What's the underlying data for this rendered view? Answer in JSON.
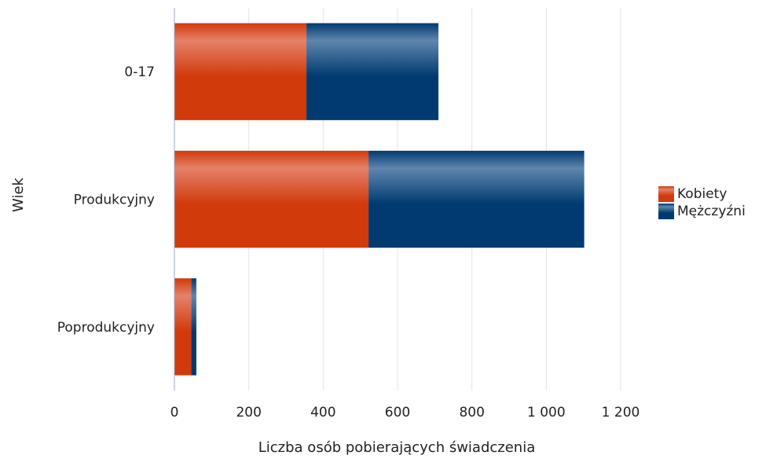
{
  "colors": {
    "kobiety": "#d13a0a",
    "kobiety_light": "#e5826a",
    "mezczyzni": "#003a70",
    "mezczyzni_light": "#5f86ad",
    "grid": "#e3e3e3",
    "axis": "#9aa8c4"
  },
  "chart_data": {
    "type": "bar",
    "orientation": "horizontal",
    "stacked": true,
    "categories": [
      "0-17",
      "Produkcyjny",
      "Poprodukcyjny"
    ],
    "series": [
      {
        "name": "Kobiety",
        "values": [
          355,
          522,
          45
        ]
      },
      {
        "name": "Mężczyźni",
        "values": [
          355,
          580,
          14
        ]
      }
    ],
    "xlabel": "Liczba osób pobierających świadczenia",
    "ylabel": "Wiek",
    "xlim": [
      0,
      1200
    ],
    "xticks": [
      0,
      200,
      400,
      600,
      800,
      1000,
      1200
    ],
    "xtick_labels": [
      "0",
      "200",
      "400",
      "600",
      "800",
      "1 000",
      "1 200"
    ],
    "grid": true,
    "legend_position": "right"
  }
}
